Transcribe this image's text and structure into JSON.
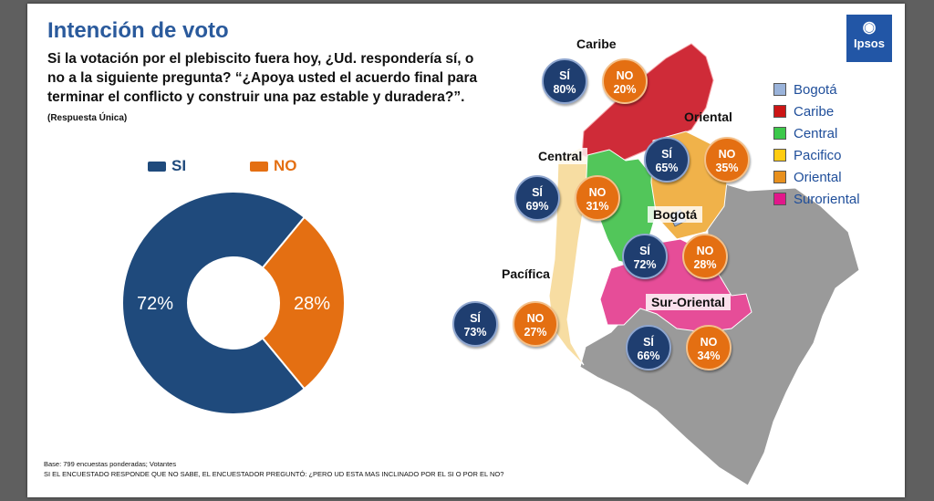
{
  "title": "Intención de voto",
  "question": "Si la votación por el plebiscito fuera hoy, ¿Ud. respondería sí, o no a la siguiente pregunta? “¿Apoya usted el acuerdo final para terminar el conflicto y construir una paz estable y duradera?”.",
  "question_note": "(Respuesta Única)",
  "logo": "Ipsos",
  "colors": {
    "si": "#1f4a7c",
    "no": "#e46f12"
  },
  "chart_data": {
    "type": "pie",
    "title": "Intención de voto",
    "categories": [
      "SI",
      "NO"
    ],
    "values": [
      72,
      28
    ],
    "value_labels": [
      "72%",
      "28%"
    ],
    "donut": true
  },
  "map_legend": [
    {
      "label": "Bogotá",
      "color": "#9ab3da"
    },
    {
      "label": "Caribe",
      "color": "#cc1515"
    },
    {
      "label": "Central",
      "color": "#3cc84a"
    },
    {
      "label": "Pacifico",
      "color": "#ffcc11"
    },
    {
      "label": "Oriental",
      "color": "#e8901d"
    },
    {
      "label": "Suroriental",
      "color": "#e2178a"
    }
  ],
  "regions": {
    "caribe": {
      "label": "Caribe",
      "si_label": "SÍ",
      "si": "80%",
      "no_label": "NO",
      "no": "20%"
    },
    "oriental": {
      "label": "Oriental",
      "si_label": "SÍ",
      "si": "65%",
      "no_label": "NO",
      "no": "35%"
    },
    "central": {
      "label": "Central",
      "si_label": "SÍ",
      "si": "69%",
      "no_label": "NO",
      "no": "31%"
    },
    "bogota": {
      "label": "Bogotá",
      "si_label": "SÍ",
      "si": "72%",
      "no_label": "NO",
      "no": "28%"
    },
    "pacifica": {
      "label": "Pacífica",
      "si_label": "SÍ",
      "si": "73%",
      "no_label": "NO",
      "no": "27%"
    },
    "suroriental": {
      "label": "Sur-Oriental",
      "si_label": "SÍ",
      "si": "66%",
      "no_label": "NO",
      "no": "34%"
    }
  },
  "footer": {
    "base": "Base: 799 encuestas ponderadas; Votantes",
    "note": "SI EL ENCUESTADO RESPONDE QUE NO SABE, EL ENCUESTADOR PREGUNTÓ: ¿PERO UD ESTA MAS INCLINADO POR EL SI O POR EL NO?"
  }
}
